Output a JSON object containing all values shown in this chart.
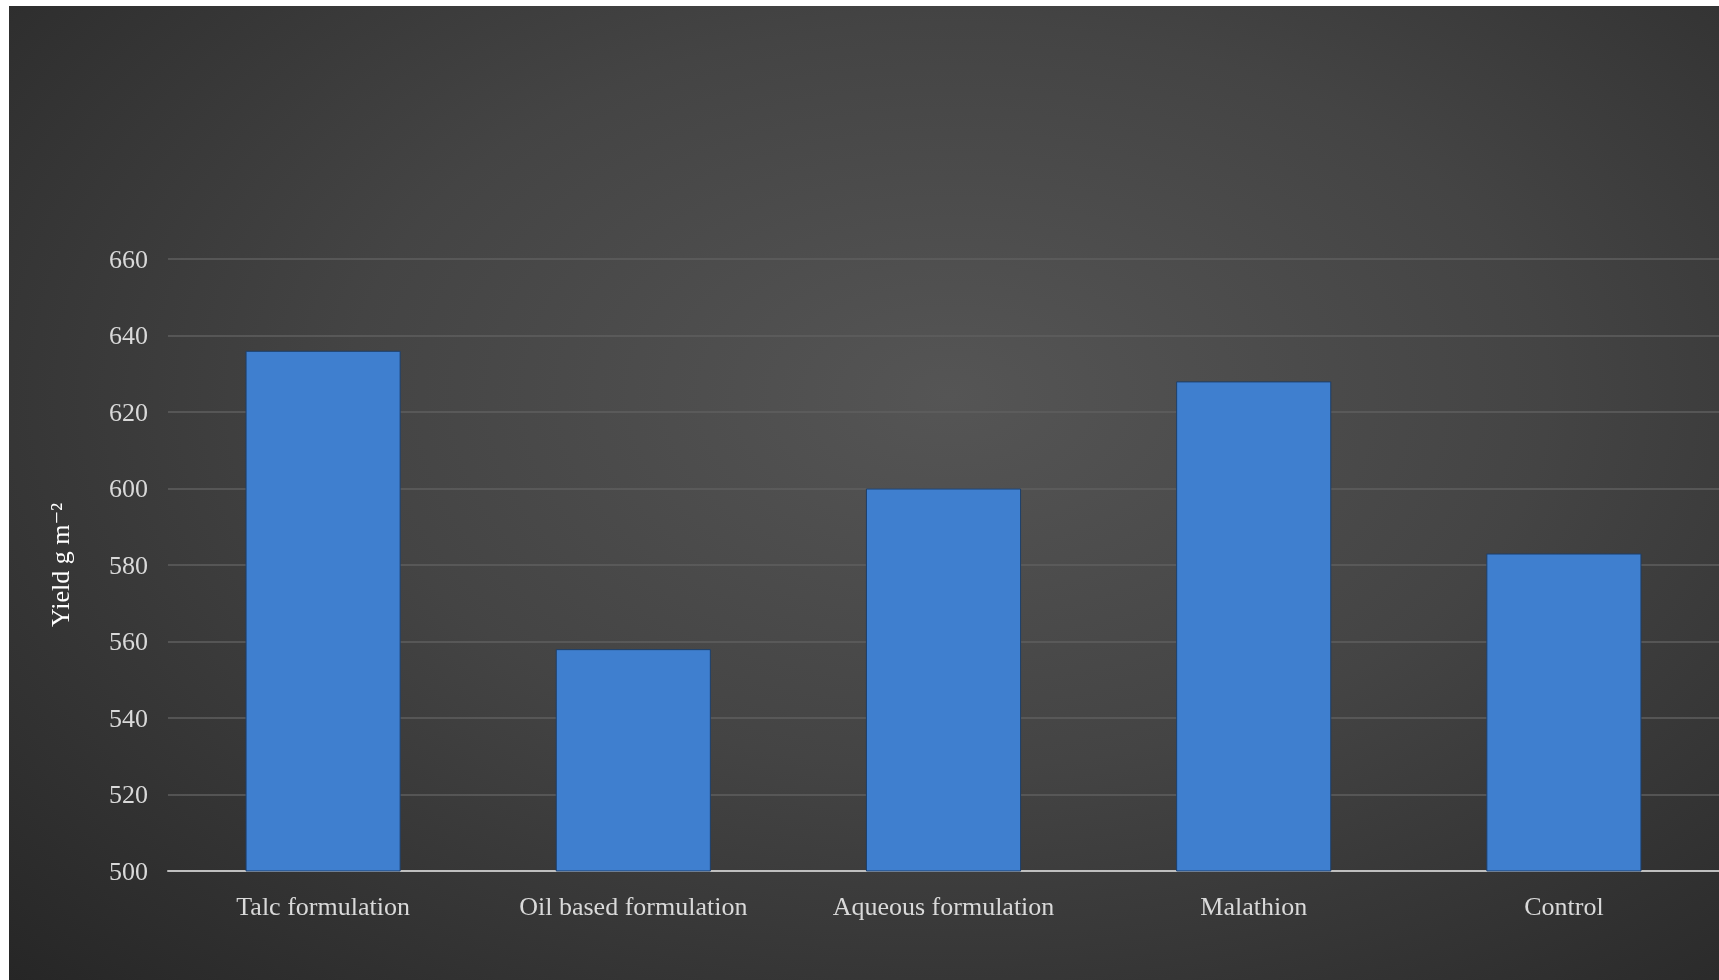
{
  "chart_data": {
    "type": "bar",
    "ylabel": "Yield g m⁻²",
    "categories": [
      "Talc formulation",
      "Oil based formulation",
      "Aqueous formulation",
      "Malathion",
      "Control"
    ],
    "values": [
      636,
      558,
      600,
      628,
      583
    ],
    "color": "#3f7fcf",
    "ylim": [
      500,
      660
    ],
    "yticks": [
      500,
      520,
      540,
      560,
      580,
      600,
      620,
      640,
      660
    ],
    "grid": "y"
  }
}
